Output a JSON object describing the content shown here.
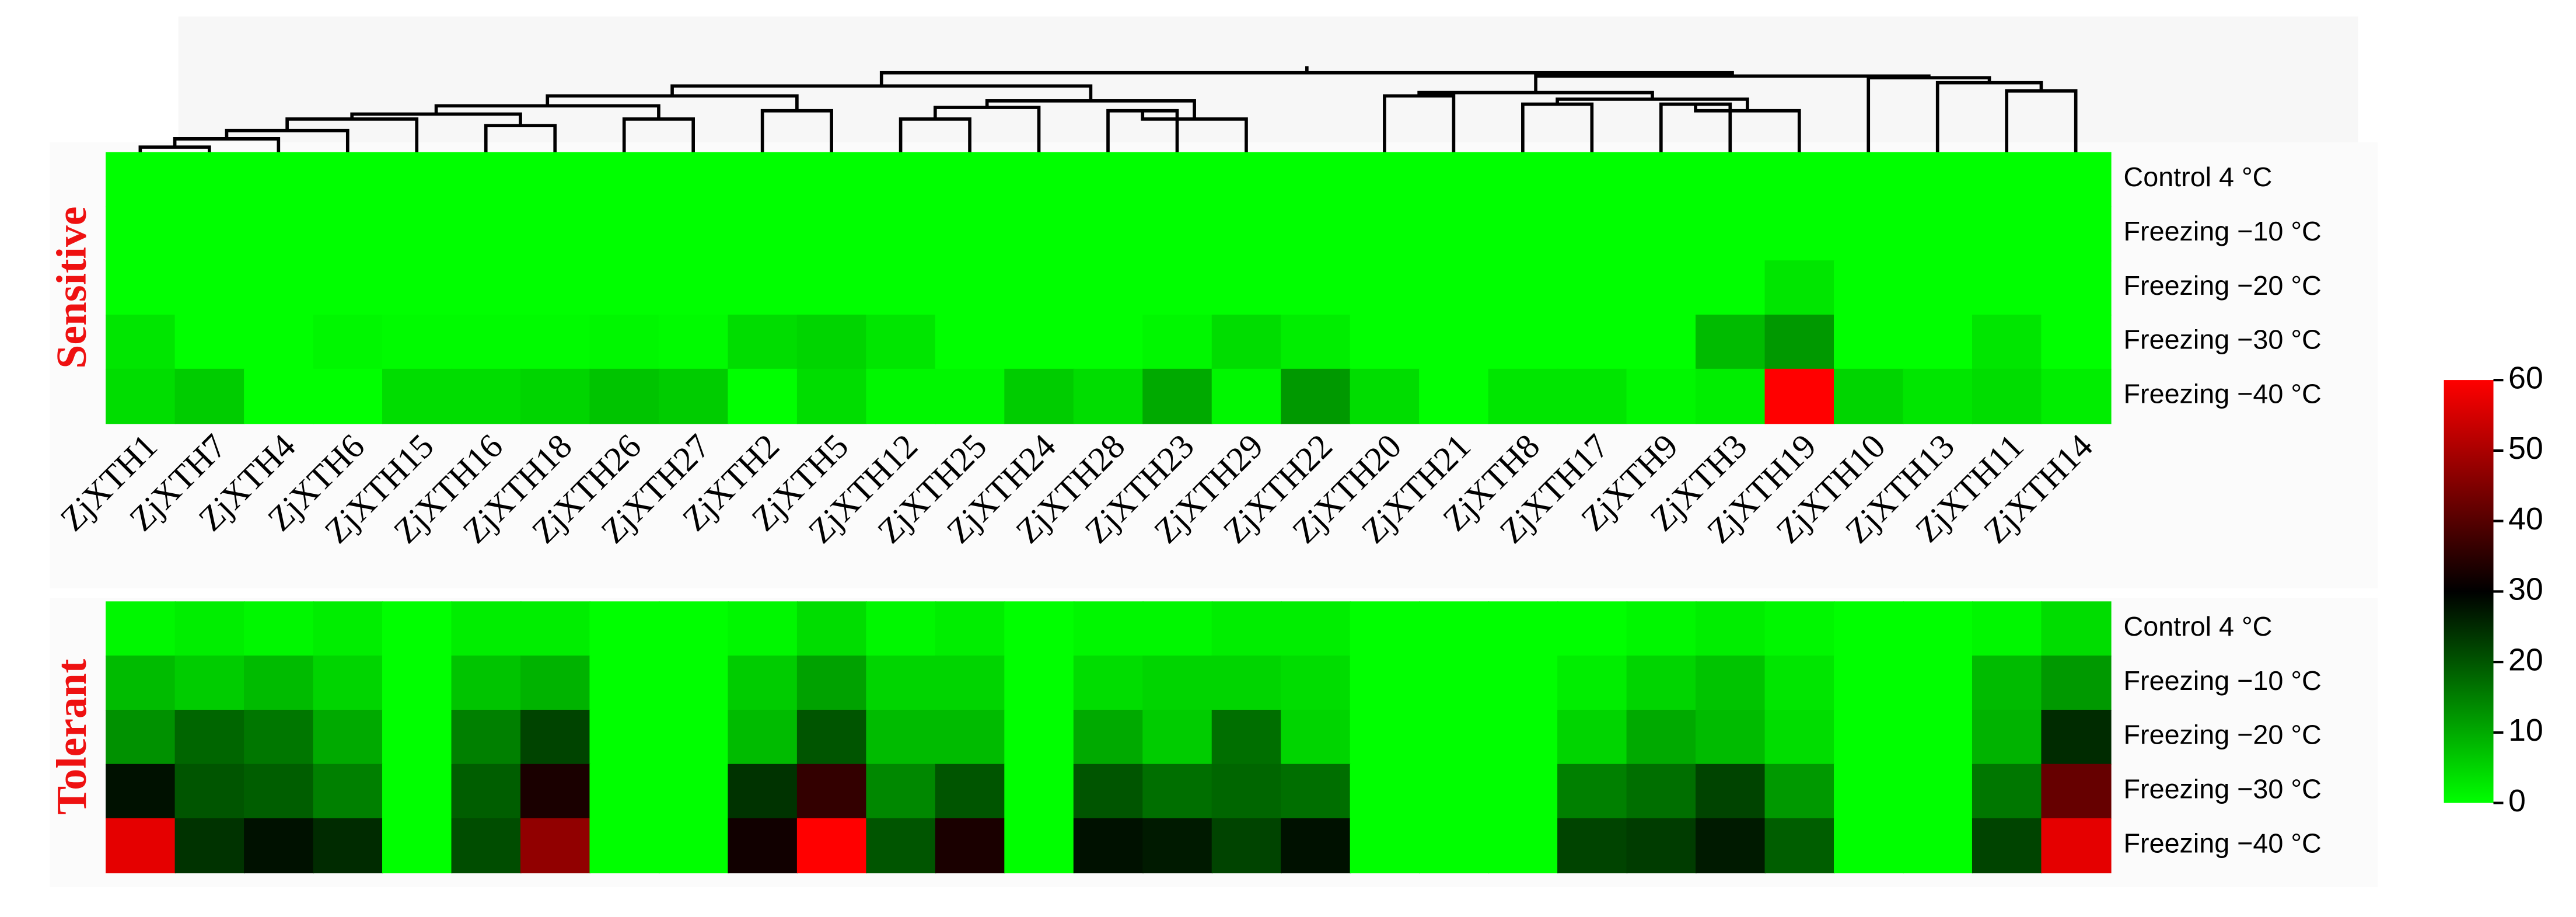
{
  "chart_data": {
    "type": "heatmap",
    "columns": [
      "ZjXTH1",
      "ZjXTH7",
      "ZjXTH4",
      "ZjXTH6",
      "ZjXTH15",
      "ZjXTH16",
      "ZjXTH18",
      "ZjXTH26",
      "ZjXTH27",
      "ZjXTH2",
      "ZjXTH5",
      "ZjXTH12",
      "ZjXTH25",
      "ZjXTH24",
      "ZjXTH28",
      "ZjXTH23",
      "ZjXTH29",
      "ZjXTH22",
      "ZjXTH20",
      "ZjXTH21",
      "ZjXTH8",
      "ZjXTH17",
      "ZjXTH9",
      "ZjXTH3",
      "ZjXTH19",
      "ZjXTH10",
      "ZjXTH13",
      "ZjXTH11",
      "ZjXTH14"
    ],
    "rows": [
      "Control 4 °C",
      "Freezing −10 °C",
      "Freezing −20 °C",
      "Freezing −30 °C",
      "Freezing −40 °C"
    ],
    "panels": [
      {
        "label": "Sensitive",
        "values": [
          [
            0,
            0,
            0,
            0,
            0,
            0,
            0,
            0,
            0,
            0,
            0,
            0,
            0,
            0,
            0,
            0,
            0,
            0,
            0,
            0,
            0,
            0,
            0,
            0,
            0,
            0,
            0,
            0,
            0
          ],
          [
            0,
            0,
            0,
            0,
            0,
            0,
            0,
            0,
            0,
            0,
            0,
            0,
            0,
            0,
            0,
            0,
            0,
            0,
            0,
            0,
            0,
            0,
            0,
            0,
            0,
            0,
            0,
            0,
            0
          ],
          [
            0,
            0,
            0,
            0,
            0,
            0,
            0,
            0,
            0,
            0,
            0,
            0,
            0,
            0,
            0,
            0,
            0,
            0,
            0,
            0,
            0,
            0,
            0,
            0,
            3,
            0,
            0,
            0,
            0
          ],
          [
            3,
            0,
            0,
            1,
            0.5,
            0.5,
            0.5,
            1,
            0.5,
            4,
            5,
            3,
            0,
            0,
            0,
            1,
            4,
            2,
            0,
            0,
            0,
            0,
            0,
            8,
            12,
            0,
            0,
            3,
            0
          ],
          [
            4,
            6,
            0,
            0,
            4,
            4,
            5,
            7,
            6,
            0,
            4,
            1,
            1,
            6,
            4,
            10,
            1,
            12,
            4,
            0,
            3,
            3,
            1,
            2,
            60,
            5,
            3,
            4,
            2
          ]
        ]
      },
      {
        "label": "Tolerant",
        "values": [
          [
            1,
            2,
            1,
            2,
            0,
            2,
            2,
            0,
            0,
            1,
            4,
            1,
            2,
            0,
            1,
            1,
            2,
            2,
            0,
            0,
            0,
            0,
            1,
            2,
            1,
            0,
            0,
            1,
            4
          ],
          [
            8,
            6,
            8,
            5,
            0,
            7,
            9,
            0,
            0,
            6,
            11,
            5,
            5,
            0,
            4,
            5,
            5,
            4,
            0,
            0,
            0,
            2,
            5,
            7,
            3,
            0,
            0,
            8,
            12
          ],
          [
            13,
            18,
            16,
            10,
            0,
            15,
            22,
            0,
            0,
            8,
            20,
            8,
            8,
            0,
            10,
            6,
            17,
            5,
            0,
            0,
            0,
            5,
            10,
            8,
            4,
            0,
            0,
            9,
            25
          ],
          [
            28,
            20,
            19,
            15,
            0,
            19,
            33,
            0,
            0,
            24,
            36,
            14,
            20,
            0,
            20,
            17,
            18,
            17,
            0,
            0,
            0,
            15,
            17,
            22,
            12,
            0,
            0,
            16,
            42
          ],
          [
            57,
            24,
            28,
            25,
            0,
            21,
            47,
            0,
            0,
            32,
            60,
            20,
            33,
            0,
            28,
            27,
            22,
            28,
            0,
            0,
            0,
            22,
            23,
            27,
            19,
            0,
            0,
            22,
            57
          ]
        ]
      }
    ],
    "zlim": [
      0,
      60
    ],
    "zticks": [
      0,
      10,
      20,
      30,
      40,
      50,
      60
    ],
    "colors": [
      "#00ff00",
      "#000000",
      "#ff0000"
    ]
  }
}
